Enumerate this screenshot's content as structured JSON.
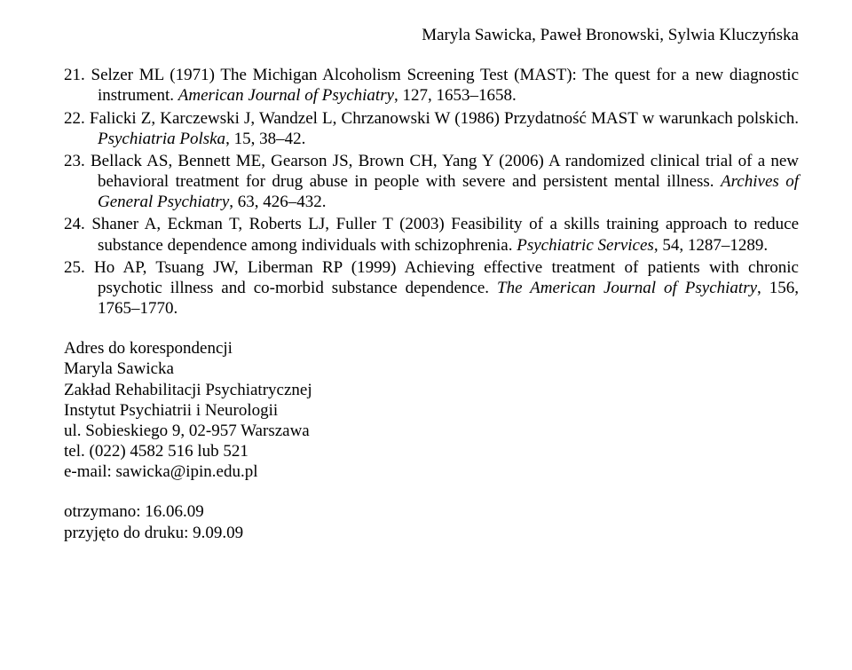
{
  "running_head": "Maryla Sawicka, Paweł Bronowski, Sylwia Kluczyńska",
  "refs": {
    "21": {
      "a": "Selzer ML (1971) The Michigan Alcoholism Screening Test (MAST): The quest for a new diagnostic instrument. ",
      "j": "American Journal of Psychiatry",
      "p": ", 127, 1653–1658."
    },
    "22": {
      "a": "Falicki Z, Karczewski J, Wandzel L, Chrzanowski W (1986) Przydatność MAST w warunkach polskich. ",
      "j": "Psychiatria Polska",
      "p": ", 15, 38–42."
    },
    "23": {
      "a": "Bellack AS, Bennett ME, Gearson JS, Brown CH, Yang Y (2006) A randomized clinical trial of a new behavioral treatment for drug abuse in people with severe and persistent mental illness. ",
      "j": "Archives of General Psychiatry",
      "p": ", 63, 426–432."
    },
    "24": {
      "a": "Shaner A, Eckman T, Roberts LJ, Fuller T (2003) Feasibility of a skills training approach to reduce substance dependence among individuals with schizophrenia. ",
      "j": "Psychiatric Services",
      "p": ", 54, 1287–1289."
    },
    "25": {
      "a": "Ho AP, Tsuang JW, Liberman RP (1999) Achieving effective treatment of patients with chronic psychotic illness and co-morbid substance dependence. ",
      "j": "The American Journal of Psychiatry",
      "p": ", 156, 1765–1770."
    }
  },
  "corr": {
    "heading": "Adres do korespondencji",
    "name": "Maryla Sawicka",
    "dept": "Zakład Rehabilitacji Psychiatrycznej",
    "inst": "Instytut Psychiatrii i Neurologii",
    "street": "ul. Sobieskiego 9, 02-957 Warszawa",
    "tel": "tel. (022) 4582 516 lub 521",
    "email": "e-mail: sawicka@ipin.edu.pl"
  },
  "dates": {
    "received": "otrzymano: 16.06.09",
    "accepted": "przyjęto do druku: 9.09.09"
  }
}
